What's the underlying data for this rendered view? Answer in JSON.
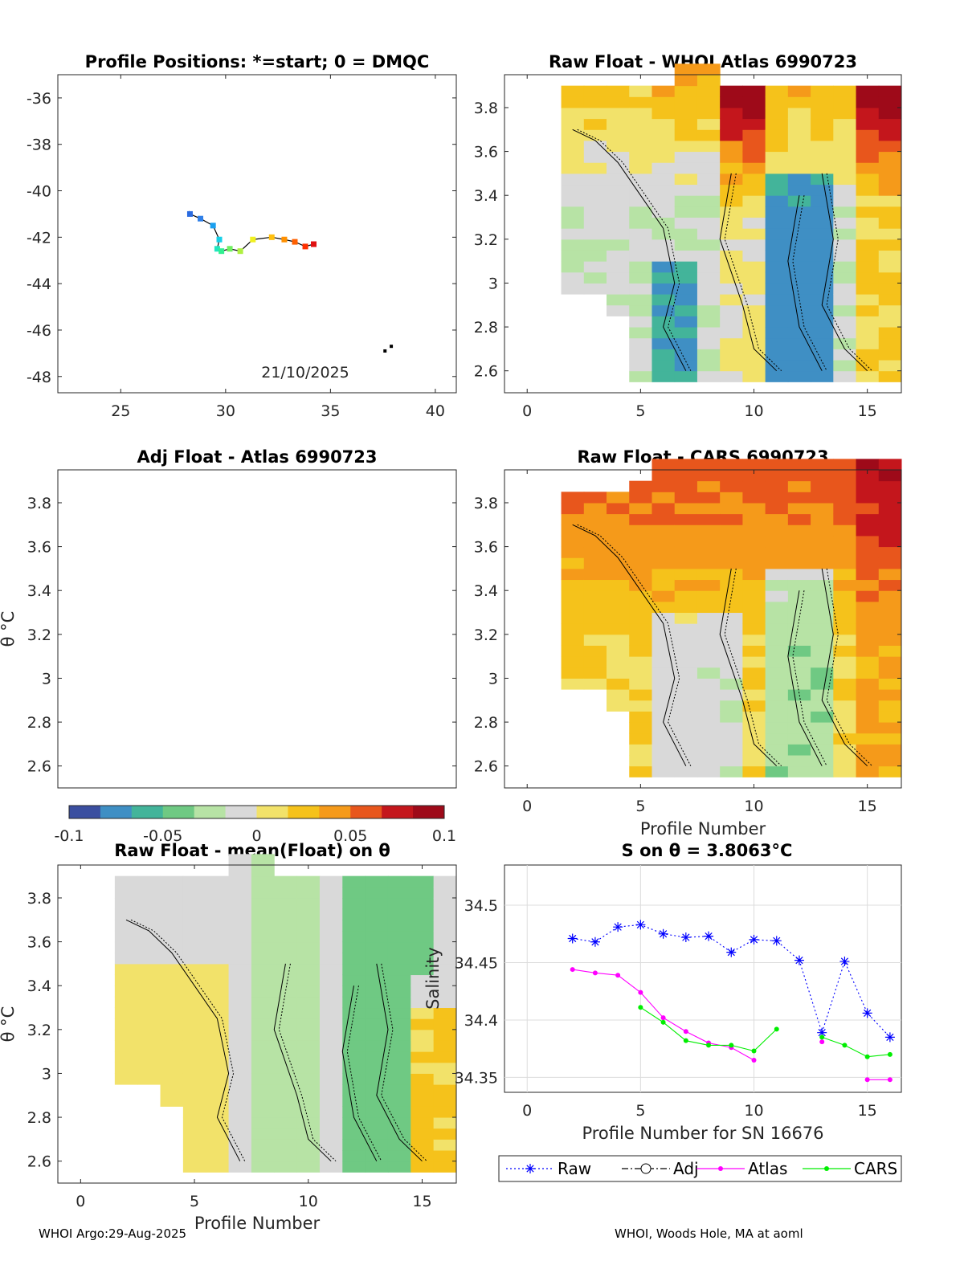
{
  "footer": {
    "left": "WHOI Argo:29-Aug-2025",
    "right": "WHOI, Woods Hole, MA at aoml"
  },
  "colors": {
    "colormap": [
      "#3b4fa0",
      "#3f8fc4",
      "#43b49a",
      "#6fc983",
      "#b7e3a5",
      "#d9d9d9",
      "#f2e26a",
      "#f5c21b",
      "#f59a1a",
      "#e8561c",
      "#c4161c",
      "#9e0a19"
    ]
  },
  "chart_data": [
    {
      "id": "positions",
      "type": "scatter",
      "title": "Profile Positions: *=start; 0 = DMQC",
      "xlim": [
        22,
        41
      ],
      "ylim": [
        -48.7,
        -35
      ],
      "xticks": [
        25,
        30,
        35,
        40
      ],
      "yticks": [
        -36,
        -38,
        -40,
        -42,
        -44,
        -46,
        -48
      ],
      "date_label": "21/10/2025",
      "track": [
        {
          "lon": 28.3,
          "lat": -41.0,
          "c": "#2a6be0"
        },
        {
          "lon": 28.8,
          "lat": -41.2,
          "c": "#3080e8"
        },
        {
          "lon": 29.4,
          "lat": -41.5,
          "c": "#1aa0f0"
        },
        {
          "lon": 29.7,
          "lat": -42.1,
          "c": "#16d0e8"
        },
        {
          "lon": 29.6,
          "lat": -42.5,
          "c": "#20e6c0"
        },
        {
          "lon": 29.8,
          "lat": -42.6,
          "c": "#30f090"
        },
        {
          "lon": 30.2,
          "lat": -42.5,
          "c": "#70f060"
        },
        {
          "lon": 30.7,
          "lat": -42.6,
          "c": "#b0f040"
        },
        {
          "lon": 31.3,
          "lat": -42.1,
          "c": "#f0f020"
        },
        {
          "lon": 32.2,
          "lat": -42.0,
          "c": "#ffc010"
        },
        {
          "lon": 32.8,
          "lat": -42.1,
          "c": "#ff9000"
        },
        {
          "lon": 33.3,
          "lat": -42.2,
          "c": "#ff6000"
        },
        {
          "lon": 33.8,
          "lat": -42.4,
          "c": "#ff3000"
        },
        {
          "lon": 34.2,
          "lat": -42.3,
          "c": "#e01010"
        }
      ],
      "land": [
        {
          "lon": 37.6,
          "lat": -46.9
        },
        {
          "lon": 37.9,
          "lat": -46.7
        }
      ]
    },
    {
      "id": "atlas",
      "type": "heatmap",
      "title": "Raw Float - WHOI Atlas  6990723",
      "xlim": [
        -1,
        16.5
      ],
      "ylim": [
        2.5,
        3.95
      ],
      "xticks": [
        0,
        5,
        10,
        15
      ],
      "yticks": [
        "3.8",
        "3.6",
        "3.4",
        "3.2",
        "3",
        "2.8",
        "2.6"
      ],
      "seed": 11,
      "theme": "atlas"
    },
    {
      "id": "adj",
      "type": "heatmap",
      "title": "Adj Float - Atlas  6990723",
      "ylabel": "θ °C",
      "xlim": [
        -1,
        16.5
      ],
      "ylim": [
        2.5,
        3.95
      ],
      "yticks": [
        "3.8",
        "3.6",
        "3.4",
        "3.2",
        "3",
        "2.8",
        "2.6"
      ],
      "colorbar": {
        "ticks": [
          "-0.1",
          "-0.05",
          "0",
          "0.05",
          "0.1"
        ]
      }
    },
    {
      "id": "cars",
      "type": "heatmap",
      "title": "Raw Float - CARS  6990723",
      "xlabel": "Profile Number",
      "xlim": [
        -1,
        16.5
      ],
      "ylim": [
        2.5,
        3.95
      ],
      "xticks": [
        0,
        5,
        10,
        15
      ],
      "yticks": [
        "3.8",
        "3.6",
        "3.4",
        "3.2",
        "3",
        "2.8",
        "2.6"
      ],
      "seed": 23,
      "theme": "cars"
    },
    {
      "id": "mean",
      "type": "heatmap",
      "title": "Raw Float - mean(Float) on θ",
      "ylabel": "θ °C",
      "xlabel": "Profile Number",
      "xlim": [
        -1,
        16.5
      ],
      "ylim": [
        2.5,
        3.95
      ],
      "xticks": [
        0,
        5,
        10,
        15
      ],
      "yticks": [
        "3.8",
        "3.6",
        "3.4",
        "3.2",
        "3",
        "2.8",
        "2.6"
      ],
      "seed": 37,
      "theme": "mean"
    },
    {
      "id": "salinity",
      "type": "line",
      "title": "S on θ = 3.8063°C",
      "ylabel": "Salinity",
      "xlabel": "Profile Number for SN 16676",
      "xlim": [
        -1,
        16.5
      ],
      "ylim": [
        34.337,
        34.535
      ],
      "xticks": [
        0,
        5,
        10,
        15
      ],
      "yticks": [
        34.35,
        34.4,
        34.45,
        34.5
      ],
      "ytick_labels": [
        "34.35",
        "34.4",
        "34.45",
        "34.5"
      ],
      "series": [
        {
          "name": "Raw",
          "color": "#0000ff",
          "marker": "star",
          "dash": "2,3",
          "x": [
            2,
            3,
            4,
            5,
            6,
            7,
            8,
            9,
            10,
            11,
            12,
            13,
            14,
            15,
            16
          ],
          "y": [
            34.471,
            34.468,
            34.481,
            34.483,
            34.475,
            34.472,
            34.473,
            34.459,
            34.47,
            34.469,
            34.452,
            34.389,
            34.451,
            34.406,
            34.385
          ]
        },
        {
          "name": "Adj",
          "color": "#000000",
          "marker": "circle",
          "dash": "8,3,2,3",
          "x": [],
          "y": []
        },
        {
          "name": "Atlas",
          "color": "#ff00ff",
          "marker": "dot",
          "dash": "",
          "x": [
            2,
            3,
            4,
            5,
            6,
            7,
            8,
            9,
            10,
            null,
            13,
            null,
            15,
            16
          ],
          "y": [
            34.444,
            34.441,
            34.439,
            34.424,
            34.402,
            34.39,
            34.38,
            34.376,
            34.365,
            null,
            34.381,
            null,
            34.348,
            34.348
          ]
        },
        {
          "name": "CARS",
          "color": "#00ee00",
          "marker": "dot",
          "dash": "",
          "x": [
            5,
            6,
            7,
            8,
            9,
            10,
            11,
            null,
            13,
            14,
            15,
            16
          ],
          "y": [
            34.411,
            34.398,
            34.382,
            34.378,
            34.378,
            34.373,
            34.392,
            null,
            34.385,
            34.378,
            34.368,
            34.37
          ]
        }
      ]
    }
  ]
}
